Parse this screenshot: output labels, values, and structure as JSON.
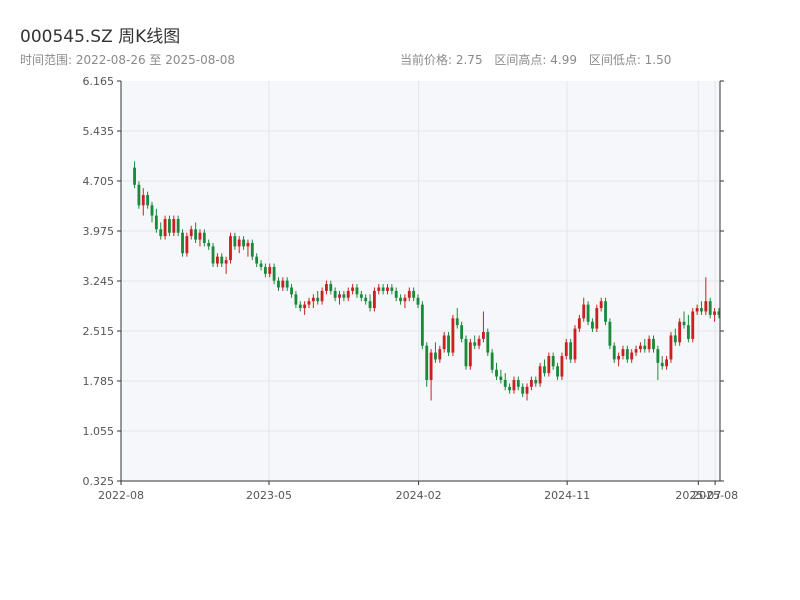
{
  "header": {
    "title": "000545.SZ 周K线图",
    "range_label": "时间范围: 2022-08-26 至 2025-08-08",
    "current_price_label": "当前价格: 2.75",
    "range_high_label": "区间高点: 4.99",
    "range_low_label": "区间低点: 1.50"
  },
  "colors": {
    "up": "#cc1f1f",
    "down": "#1a8a3a",
    "plot_bg": "#f5f7fa",
    "grid": "#e3e6ea",
    "axis": "#333333"
  },
  "chart_data": {
    "type": "candlestick",
    "title": "000545.SZ 周K线图",
    "xlabel": "",
    "ylabel": "",
    "ylim": [
      0.325,
      6.165
    ],
    "y_ticks": [
      "6.165",
      "5.435",
      "4.705",
      "3.975",
      "3.245",
      "2.515",
      "1.785",
      "1.055",
      "0.325"
    ],
    "x_ticks": [
      {
        "label": "2022-08",
        "date": "2022-08-01"
      },
      {
        "label": "2023-05",
        "date": "2023-05-01"
      },
      {
        "label": "2024-02",
        "date": "2024-02-01"
      },
      {
        "label": "2024-11",
        "date": "2024-11-01"
      },
      {
        "label": "2025-07",
        "date": "2025-07-01"
      },
      {
        "label": "2025-08",
        "date": "2025-08-01"
      }
    ],
    "xlim": [
      "2022-08-01",
      "2025-08-10"
    ],
    "grid": true,
    "start_date": "2022-08-26",
    "end_date": "2025-08-08",
    "candles": [
      [
        4.9,
        4.99,
        4.6,
        4.65
      ],
      [
        4.65,
        4.7,
        4.3,
        4.35
      ],
      [
        4.35,
        4.6,
        4.2,
        4.5
      ],
      [
        4.5,
        4.55,
        4.3,
        4.35
      ],
      [
        4.35,
        4.4,
        4.1,
        4.2
      ],
      [
        4.2,
        4.3,
        3.95,
        4.0
      ],
      [
        4.0,
        4.1,
        3.85,
        3.9
      ],
      [
        3.9,
        4.2,
        3.85,
        4.15
      ],
      [
        4.15,
        4.2,
        3.9,
        3.95
      ],
      [
        3.95,
        4.2,
        3.9,
        4.15
      ],
      [
        4.15,
        4.2,
        3.9,
        3.95
      ],
      [
        3.95,
        4.0,
        3.6,
        3.65
      ],
      [
        3.65,
        3.95,
        3.6,
        3.9
      ],
      [
        3.9,
        4.05,
        3.85,
        4.0
      ],
      [
        4.0,
        4.1,
        3.8,
        3.85
      ],
      [
        3.85,
        4.0,
        3.75,
        3.95
      ],
      [
        3.95,
        4.0,
        3.75,
        3.8
      ],
      [
        3.8,
        3.85,
        3.7,
        3.75
      ],
      [
        3.75,
        3.8,
        3.45,
        3.5
      ],
      [
        3.5,
        3.65,
        3.45,
        3.6
      ],
      [
        3.6,
        3.65,
        3.45,
        3.5
      ],
      [
        3.5,
        3.6,
        3.35,
        3.55
      ],
      [
        3.55,
        3.95,
        3.5,
        3.9
      ],
      [
        3.9,
        3.95,
        3.7,
        3.75
      ],
      [
        3.75,
        3.9,
        3.65,
        3.85
      ],
      [
        3.85,
        3.9,
        3.7,
        3.75
      ],
      [
        3.75,
        3.85,
        3.6,
        3.8
      ],
      [
        3.8,
        3.85,
        3.55,
        3.6
      ],
      [
        3.6,
        3.65,
        3.45,
        3.5
      ],
      [
        3.5,
        3.55,
        3.4,
        3.45
      ],
      [
        3.45,
        3.5,
        3.3,
        3.35
      ],
      [
        3.35,
        3.5,
        3.3,
        3.45
      ],
      [
        3.45,
        3.5,
        3.2,
        3.25
      ],
      [
        3.25,
        3.3,
        3.1,
        3.15
      ],
      [
        3.15,
        3.3,
        3.1,
        3.25
      ],
      [
        3.25,
        3.3,
        3.1,
        3.15
      ],
      [
        3.15,
        3.2,
        3.0,
        3.05
      ],
      [
        3.05,
        3.1,
        2.85,
        2.9
      ],
      [
        2.9,
        2.95,
        2.8,
        2.85
      ],
      [
        2.85,
        2.95,
        2.75,
        2.9
      ],
      [
        2.9,
        3.0,
        2.85,
        2.95
      ],
      [
        2.95,
        3.05,
        2.85,
        3.0
      ],
      [
        3.0,
        3.1,
        2.9,
        2.95
      ],
      [
        2.95,
        3.15,
        2.9,
        3.1
      ],
      [
        3.1,
        3.25,
        3.05,
        3.2
      ],
      [
        3.2,
        3.25,
        3.05,
        3.1
      ],
      [
        3.1,
        3.15,
        2.95,
        3.0
      ],
      [
        3.0,
        3.1,
        2.9,
        3.05
      ],
      [
        3.05,
        3.1,
        2.95,
        3.0
      ],
      [
        3.0,
        3.15,
        2.95,
        3.1
      ],
      [
        3.1,
        3.2,
        3.05,
        3.15
      ],
      [
        3.15,
        3.2,
        3.0,
        3.05
      ],
      [
        3.05,
        3.1,
        2.95,
        3.0
      ],
      [
        3.0,
        3.05,
        2.9,
        2.95
      ],
      [
        2.95,
        3.05,
        2.8,
        2.85
      ],
      [
        2.85,
        3.15,
        2.8,
        3.1
      ],
      [
        3.1,
        3.2,
        3.05,
        3.15
      ],
      [
        3.15,
        3.2,
        3.05,
        3.1
      ],
      [
        3.1,
        3.2,
        3.05,
        3.15
      ],
      [
        3.15,
        3.2,
        3.05,
        3.1
      ],
      [
        3.1,
        3.15,
        2.95,
        3.0
      ],
      [
        3.0,
        3.05,
        2.9,
        2.95
      ],
      [
        2.95,
        3.05,
        2.85,
        3.0
      ],
      [
        3.0,
        3.15,
        2.95,
        3.1
      ],
      [
        3.1,
        3.15,
        2.95,
        3.0
      ],
      [
        3.0,
        3.05,
        2.85,
        2.9
      ],
      [
        2.9,
        2.95,
        2.25,
        2.3
      ],
      [
        2.3,
        2.35,
        1.7,
        1.8
      ],
      [
        1.8,
        2.25,
        1.5,
        2.2
      ],
      [
        2.2,
        2.35,
        2.05,
        2.1
      ],
      [
        2.1,
        2.3,
        2.05,
        2.25
      ],
      [
        2.25,
        2.5,
        2.2,
        2.45
      ],
      [
        2.45,
        2.5,
        2.15,
        2.2
      ],
      [
        2.2,
        2.75,
        2.15,
        2.7
      ],
      [
        2.7,
        2.85,
        2.55,
        2.6
      ],
      [
        2.6,
        2.65,
        2.35,
        2.4
      ],
      [
        2.4,
        2.45,
        1.95,
        2.0
      ],
      [
        2.0,
        2.4,
        1.95,
        2.35
      ],
      [
        2.35,
        2.45,
        2.25,
        2.3
      ],
      [
        2.3,
        2.45,
        2.25,
        2.4
      ],
      [
        2.4,
        2.8,
        2.35,
        2.5
      ],
      [
        2.5,
        2.55,
        2.15,
        2.2
      ],
      [
        2.2,
        2.25,
        1.9,
        1.95
      ],
      [
        1.95,
        2.05,
        1.8,
        1.85
      ],
      [
        1.85,
        1.95,
        1.75,
        1.8
      ],
      [
        1.8,
        1.9,
        1.65,
        1.7
      ],
      [
        1.7,
        1.75,
        1.6,
        1.65
      ],
      [
        1.65,
        1.85,
        1.6,
        1.8
      ],
      [
        1.8,
        1.85,
        1.65,
        1.7
      ],
      [
        1.7,
        1.75,
        1.55,
        1.6
      ],
      [
        1.6,
        1.75,
        1.5,
        1.7
      ],
      [
        1.7,
        1.85,
        1.65,
        1.8
      ],
      [
        1.8,
        1.85,
        1.7,
        1.75
      ],
      [
        1.75,
        2.05,
        1.7,
        2.0
      ],
      [
        2.0,
        2.1,
        1.85,
        1.9
      ],
      [
        1.9,
        2.2,
        1.85,
        2.15
      ],
      [
        2.15,
        2.2,
        1.95,
        2.0
      ],
      [
        2.0,
        2.05,
        1.8,
        1.85
      ],
      [
        1.85,
        2.2,
        1.8,
        2.15
      ],
      [
        2.15,
        2.4,
        2.1,
        2.35
      ],
      [
        2.35,
        2.4,
        2.05,
        2.1
      ],
      [
        2.1,
        2.6,
        2.05,
        2.55
      ],
      [
        2.55,
        2.75,
        2.5,
        2.7
      ],
      [
        2.7,
        3.0,
        2.65,
        2.9
      ],
      [
        2.9,
        2.95,
        2.6,
        2.65
      ],
      [
        2.65,
        2.7,
        2.5,
        2.55
      ],
      [
        2.55,
        2.9,
        2.5,
        2.85
      ],
      [
        2.85,
        3.0,
        2.8,
        2.95
      ],
      [
        2.95,
        3.0,
        2.6,
        2.65
      ],
      [
        2.65,
        2.7,
        2.25,
        2.3
      ],
      [
        2.3,
        2.35,
        2.05,
        2.1
      ],
      [
        2.1,
        2.2,
        2.0,
        2.15
      ],
      [
        2.15,
        2.3,
        2.1,
        2.25
      ],
      [
        2.25,
        2.3,
        2.05,
        2.1
      ],
      [
        2.1,
        2.25,
        2.05,
        2.2
      ],
      [
        2.2,
        2.3,
        2.15,
        2.25
      ],
      [
        2.25,
        2.35,
        2.2,
        2.3
      ],
      [
        2.3,
        2.4,
        2.2,
        2.25
      ],
      [
        2.25,
        2.45,
        2.2,
        2.4
      ],
      [
        2.4,
        2.45,
        2.2,
        2.25
      ],
      [
        2.25,
        2.3,
        1.8,
        2.05
      ],
      [
        2.05,
        2.15,
        1.95,
        2.0
      ],
      [
        2.0,
        2.15,
        1.95,
        2.1
      ],
      [
        2.1,
        2.5,
        2.05,
        2.45
      ],
      [
        2.45,
        2.55,
        2.3,
        2.35
      ],
      [
        2.35,
        2.7,
        2.3,
        2.65
      ],
      [
        2.65,
        2.8,
        2.55,
        2.6
      ],
      [
        2.6,
        2.75,
        2.35,
        2.4
      ],
      [
        2.4,
        2.85,
        2.35,
        2.8
      ],
      [
        2.8,
        2.9,
        2.75,
        2.85
      ],
      [
        2.85,
        2.95,
        2.75,
        2.8
      ],
      [
        2.8,
        3.3,
        2.75,
        2.95
      ],
      [
        2.95,
        3.0,
        2.7,
        2.75
      ],
      [
        2.75,
        2.85,
        2.65,
        2.8
      ],
      [
        2.8,
        2.85,
        2.7,
        2.75
      ]
    ]
  }
}
